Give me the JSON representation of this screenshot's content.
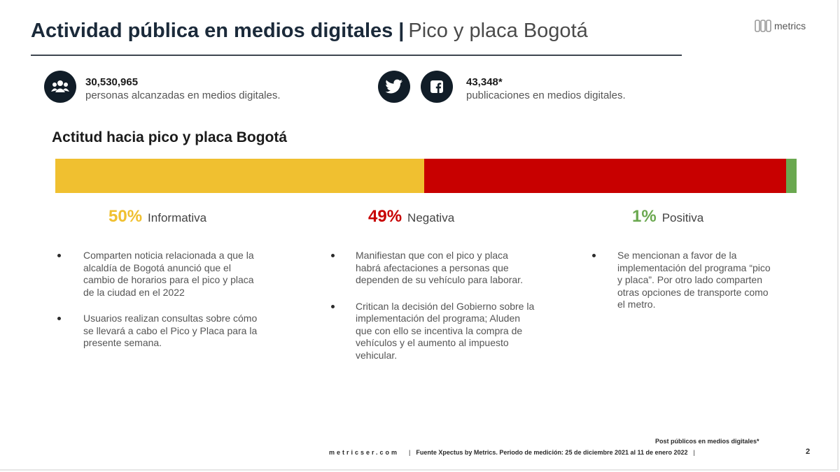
{
  "header": {
    "title_bold": "Actividad pública en medios digitales",
    "separator": "|",
    "title_light": "Pico y placa Bogotá",
    "logo_text": "metrics"
  },
  "stats": [
    {
      "icon": "people-icon",
      "value": "30,530,965",
      "label": "personas alcanzadas en medios digitales."
    },
    {
      "icons": [
        "twitter-icon",
        "facebook-icon"
      ],
      "value": "43,348*",
      "label": "publicaciones en medios digitales."
    }
  ],
  "section_title": "Actitud hacia pico y placa Bogotá",
  "attitude_bar": {
    "segments": [
      {
        "label": "Informativa",
        "percent_text": "50%",
        "share": 49.8,
        "color": "#f0c030"
      },
      {
        "label": "Negativa",
        "percent_text": "49%",
        "share": 48.8,
        "color": "#c80000"
      },
      {
        "label": "Positiva",
        "percent_text": "1%",
        "share": 1.4,
        "color": "#6aa84f"
      }
    ]
  },
  "columns": [
    {
      "bullets": [
        {
          "lines": [
            "Comparten noticia relacionada a que la",
            "alcaldía de Bogotá anunció que  el",
            "cambio de horarios para el pico y placa",
            "de la ciudad en el 2022"
          ]
        },
        {
          "lines": [
            "Usuarios realizan consultas sobre cómo",
            "se llevará a cabo el Pico y Placa para la",
            "presente semana."
          ]
        }
      ]
    },
    {
      "bullets": [
        {
          "lines": [
            "Manifiestan que con el pico y placa",
            "habrá afectaciones a personas que",
            "dependen de su vehículo para laborar."
          ]
        },
        {
          "lines": [
            "Critican la decisión del Gobierno sobre la",
            "implementación del programa; Aluden",
            "que con ello se incentiva la compra de",
            "vehículos y el aumento al impuesto",
            "vehicular."
          ]
        }
      ]
    },
    {
      "bullets": [
        {
          "lines": [
            "Se mencionan a favor de la",
            "implementación del programa “pico",
            "y placa”. Por otro lado comparten",
            "otras opciones de transporte como",
            "el metro."
          ]
        }
      ]
    }
  ],
  "footer": {
    "note": "Post públicos en medios digitales*",
    "site": "metricser.com",
    "pipe": "|",
    "source": "Fuente Xpectus by Metrics.  Periodo de medición: 25 de diciembre 2021 al 11 de enero 2022",
    "end_pipe": "|",
    "page_number": "2"
  }
}
